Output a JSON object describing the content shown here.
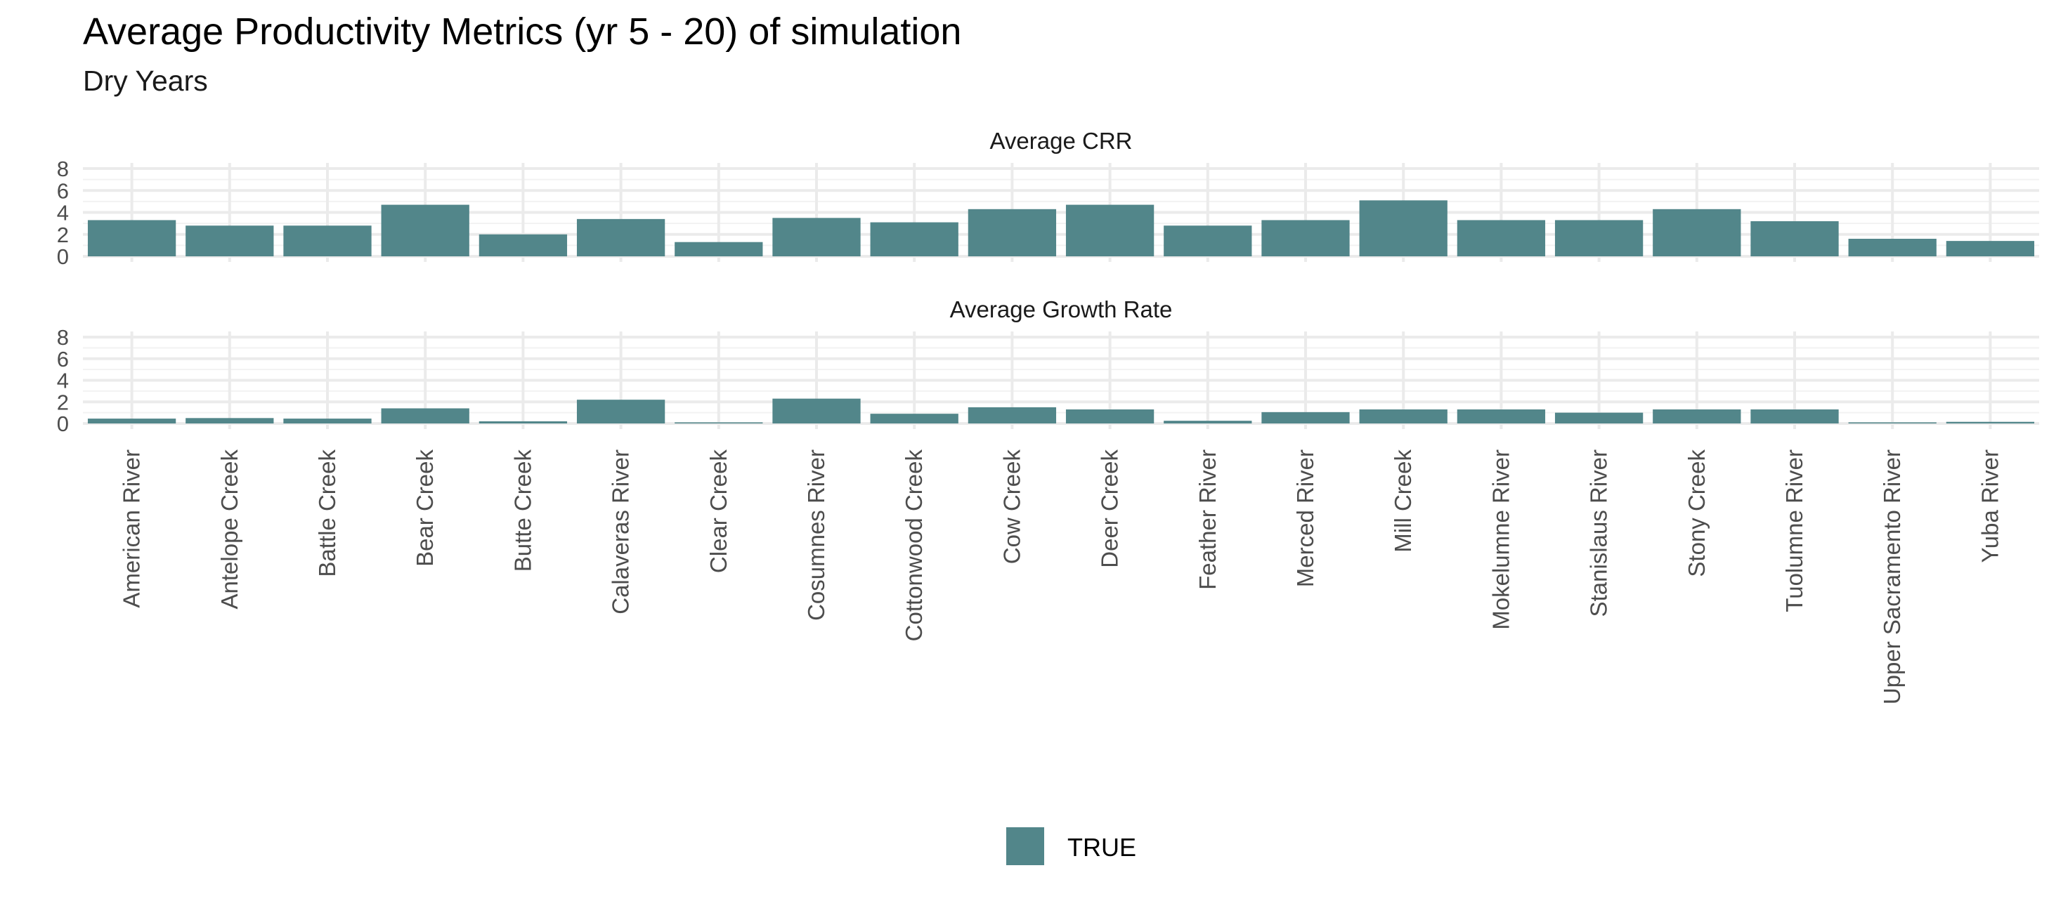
{
  "chart_data": {
    "type": "bar",
    "title": "Average Productivity Metrics (yr 5 - 20) of simulation",
    "subtitle": "Dry Years",
    "xlabel": "",
    "ylabel": "",
    "categories": [
      "American River",
      "Antelope Creek",
      "Battle Creek",
      "Bear Creek",
      "Butte Creek",
      "Calaveras River",
      "Clear Creek",
      "Cosumnes River",
      "Cottonwood Creek",
      "Cow Creek",
      "Deer Creek",
      "Feather River",
      "Merced River",
      "Mill Creek",
      "Mokelumne River",
      "Stanislaus River",
      "Stony Creek",
      "Tuolumne River",
      "Upper Sacramento River",
      "Yuba River"
    ],
    "yticks": [
      "0",
      "2",
      "4",
      "6",
      "8"
    ],
    "ylim": [
      0,
      8
    ],
    "grid": true,
    "legend": {
      "placement": "bottom",
      "entries": [
        {
          "label": "TRUE",
          "color": "#52868a"
        }
      ]
    },
    "bar_color": "#52868a",
    "panels": [
      {
        "label": "Average CRR",
        "values": [
          3.3,
          2.8,
          2.8,
          4.7,
          2.0,
          3.4,
          1.3,
          3.5,
          3.1,
          4.3,
          4.7,
          2.8,
          3.3,
          5.1,
          3.3,
          3.3,
          4.3,
          3.2,
          1.6,
          1.4
        ]
      },
      {
        "label": "Average Growth Rate",
        "values": [
          0.45,
          0.5,
          0.45,
          1.4,
          0.2,
          2.2,
          0.1,
          2.3,
          0.9,
          1.5,
          1.3,
          0.25,
          1.05,
          1.3,
          1.3,
          1.0,
          1.3,
          1.3,
          0.1,
          0.15
        ]
      }
    ]
  }
}
